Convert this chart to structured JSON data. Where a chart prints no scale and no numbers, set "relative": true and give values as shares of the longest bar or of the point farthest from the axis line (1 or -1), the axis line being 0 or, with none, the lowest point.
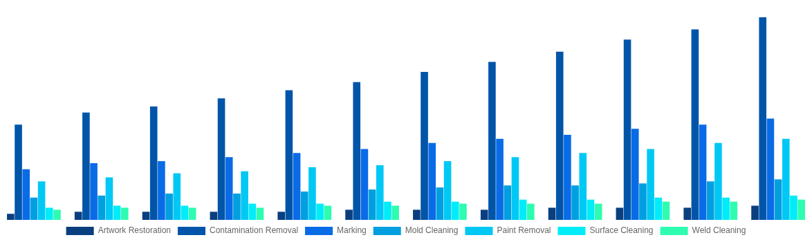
{
  "chart_data": {
    "type": "bar",
    "relative": true,
    "legend": "bottom",
    "grid": false,
    "categories": [
      null,
      null,
      null,
      null,
      null,
      null,
      null,
      null,
      null,
      null,
      null,
      null
    ],
    "series": [
      {
        "name": "Artwork Restoration",
        "color": "#0a3f7f",
        "values": [
          0.03,
          0.04,
          0.04,
          0.04,
          0.04,
          0.05,
          0.05,
          0.05,
          0.06,
          0.06,
          0.06,
          0.07
        ]
      },
      {
        "name": "Contamination Removal",
        "color": "#0055a8",
        "values": [
          0.47,
          0.53,
          0.56,
          0.6,
          0.64,
          0.68,
          0.73,
          0.78,
          0.83,
          0.89,
          0.94,
          1
        ]
      },
      {
        "name": "Marking",
        "color": "#0a6be6",
        "values": [
          0.25,
          0.28,
          0.29,
          0.31,
          0.33,
          0.35,
          0.38,
          0.4,
          0.42,
          0.45,
          0.47,
          0.5
        ]
      },
      {
        "name": "Mold Cleaning",
        "color": "#009fe0",
        "values": [
          0.11,
          0.12,
          0.13,
          0.13,
          0.14,
          0.15,
          0.16,
          0.17,
          0.17,
          0.18,
          0.19,
          0.2
        ]
      },
      {
        "name": "Paint Removal",
        "color": "#00c8f5",
        "values": [
          0.19,
          0.21,
          0.23,
          0.24,
          0.26,
          0.27,
          0.29,
          0.31,
          0.33,
          0.35,
          0.38,
          0.4
        ]
      },
      {
        "name": "Surface Cleaning",
        "color": "#00ecf8",
        "values": [
          0.06,
          0.07,
          0.07,
          0.08,
          0.08,
          0.09,
          0.09,
          0.1,
          0.1,
          0.11,
          0.11,
          0.12
        ]
      },
      {
        "name": "Weld Cleaning",
        "color": "#2efcb0",
        "values": [
          0.05,
          0.06,
          0.06,
          0.06,
          0.07,
          0.07,
          0.08,
          0.08,
          0.08,
          0.09,
          0.09,
          0.1
        ]
      }
    ]
  }
}
